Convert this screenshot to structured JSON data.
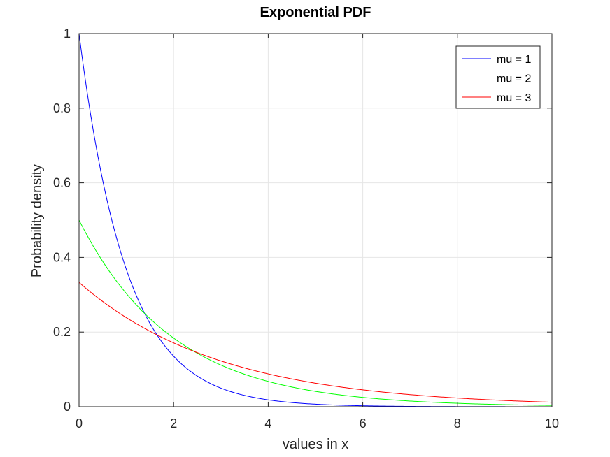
{
  "chart_data": {
    "type": "line",
    "title": "Exponential PDF",
    "xlabel": "values in x",
    "ylabel": "Probability density",
    "xlim": [
      0,
      10
    ],
    "ylim": [
      0,
      1
    ],
    "xticks": [
      0,
      2,
      4,
      6,
      8,
      10
    ],
    "yticks": [
      0,
      0.2,
      0.4,
      0.6,
      0.8,
      1
    ],
    "xtick_labels": [
      "0",
      "2",
      "4",
      "6",
      "8",
      "10"
    ],
    "ytick_labels": [
      "0",
      "0.2",
      "0.4",
      "0.6",
      "0.8",
      "1"
    ],
    "grid": true,
    "legend_position": "top-right",
    "x": [
      0,
      0.5,
      1,
      1.5,
      2,
      2.5,
      3,
      3.5,
      4,
      4.5,
      5,
      5.5,
      6,
      6.5,
      7,
      7.5,
      8,
      8.5,
      9,
      9.5,
      10
    ],
    "series": [
      {
        "name": "mu = 1",
        "color": "#0000ff",
        "values": [
          1.0,
          0.607,
          0.368,
          0.223,
          0.135,
          0.082,
          0.05,
          0.03,
          0.018,
          0.011,
          0.007,
          0.004,
          0.002,
          0.002,
          0.001,
          0.001,
          0.0003,
          0.0002,
          0.0001,
          0.0001,
          0.0
        ]
      },
      {
        "name": "mu = 2",
        "color": "#00ff00",
        "values": [
          0.5,
          0.389,
          0.303,
          0.236,
          0.184,
          0.143,
          0.112,
          0.087,
          0.068,
          0.053,
          0.041,
          0.032,
          0.025,
          0.019,
          0.015,
          0.012,
          0.009,
          0.007,
          0.006,
          0.004,
          0.003
        ]
      },
      {
        "name": "mu = 3",
        "color": "#ff0000",
        "values": [
          0.333,
          0.282,
          0.239,
          0.202,
          0.171,
          0.145,
          0.123,
          0.104,
          0.088,
          0.074,
          0.063,
          0.053,
          0.045,
          0.038,
          0.032,
          0.027,
          0.023,
          0.02,
          0.017,
          0.014,
          0.012
        ]
      }
    ]
  }
}
